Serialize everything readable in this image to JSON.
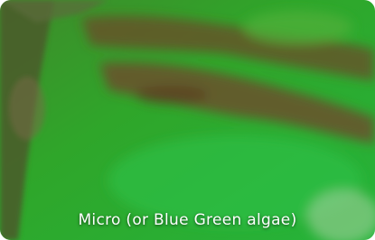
{
  "caption": "Micro (or Blue Green algae)"
}
